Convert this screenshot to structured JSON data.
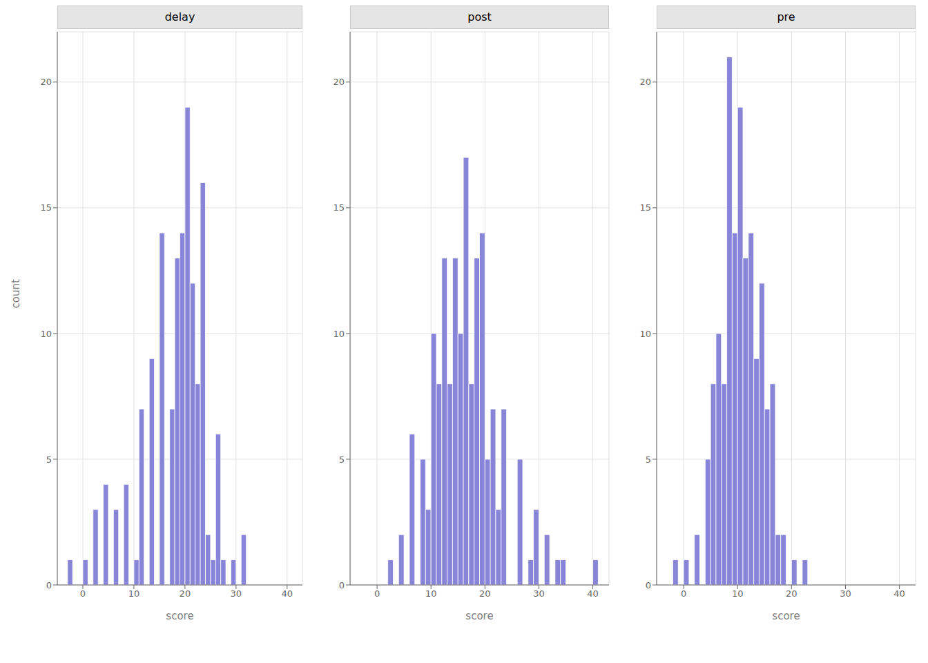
{
  "chart_data": [
    {
      "type": "histogram",
      "title": "delay",
      "xlabel": "score",
      "ylabel": "count",
      "bins": [
        -3,
        -2,
        -1,
        0,
        1,
        2,
        3,
        4,
        5,
        6,
        7,
        8,
        9,
        10,
        11,
        12,
        13,
        14,
        15,
        16,
        17,
        18,
        19,
        20,
        21,
        22,
        23,
        24,
        25,
        26,
        27,
        28,
        29,
        30,
        31,
        32
      ],
      "counts": [
        1,
        0,
        0,
        1,
        0,
        3,
        0,
        4,
        0,
        3,
        0,
        4,
        0,
        1,
        7,
        0,
        9,
        0,
        14,
        0,
        7,
        13,
        14,
        19,
        12,
        8,
        16,
        2,
        1,
        6,
        1,
        0,
        1,
        0,
        2
      ],
      "xlim": [
        -5,
        43
      ],
      "ylim": [
        0,
        22
      ],
      "xticks": [
        0,
        10,
        20,
        30,
        40
      ],
      "yticks": [
        0,
        5,
        10,
        15,
        20
      ],
      "grid": true
    },
    {
      "type": "histogram",
      "title": "post",
      "xlabel": "score",
      "bins": [
        2,
        3,
        4,
        5,
        6,
        7,
        8,
        9,
        10,
        11,
        12,
        13,
        14,
        15,
        16,
        17,
        18,
        19,
        20,
        21,
        22,
        23,
        24,
        25,
        26,
        27,
        28,
        29,
        30,
        31,
        32,
        33,
        34,
        35,
        36,
        37,
        38,
        39,
        40,
        41
      ],
      "counts": [
        1,
        0,
        2,
        0,
        6,
        0,
        5,
        3,
        10,
        8,
        13,
        8,
        13,
        10,
        17,
        8,
        13,
        14,
        5,
        7,
        3,
        7,
        0,
        0,
        5,
        0,
        1,
        3,
        0,
        2,
        0,
        1,
        1,
        0,
        0,
        0,
        0,
        0,
        1
      ],
      "xlim": [
        -5,
        43
      ],
      "ylim": [
        0,
        22
      ],
      "xticks": [
        0,
        10,
        20,
        30,
        40
      ],
      "yticks": [
        0,
        5,
        10,
        15,
        20
      ],
      "grid": true
    },
    {
      "type": "histogram",
      "title": "pre",
      "xlabel": "score",
      "bins": [
        -4,
        -3,
        -2,
        -1,
        0,
        1,
        2,
        3,
        4,
        5,
        6,
        7,
        8,
        9,
        10,
        11,
        12,
        13,
        14,
        15,
        16,
        17,
        18,
        19,
        20,
        21,
        22,
        23
      ],
      "counts": [
        0,
        0,
        1,
        0,
        1,
        0,
        2,
        0,
        5,
        8,
        10,
        8,
        21,
        14,
        19,
        13,
        14,
        9,
        12,
        7,
        8,
        2,
        2,
        0,
        1,
        0,
        1
      ],
      "xlim": [
        -5,
        43
      ],
      "ylim": [
        0,
        22
      ],
      "xticks": [
        0,
        10,
        20,
        30,
        40
      ],
      "yticks": [
        0,
        5,
        10,
        15,
        20
      ],
      "grid": true
    }
  ]
}
